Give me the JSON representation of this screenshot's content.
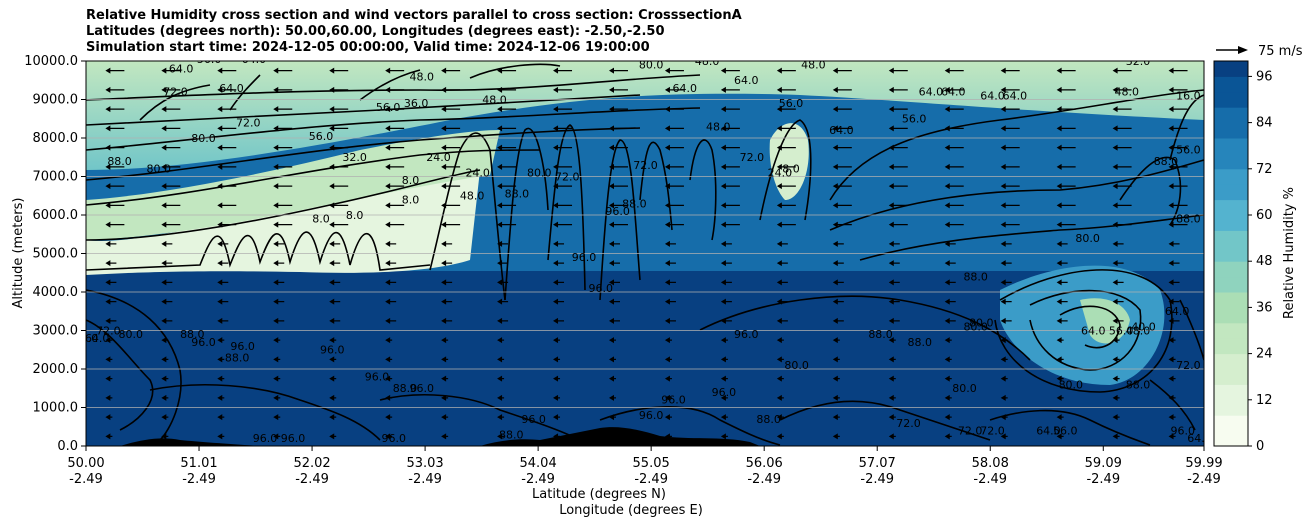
{
  "titles": {
    "line1": "Relative Humidity cross section and wind vectors parallel to cross section: CrosssectionA",
    "line2": "Latitudes (degrees north): 50.00,60.00, Longitudes (degrees east): -2.50,-2.50",
    "line3": "Simulation start time: 2024-12-05 00:00:00, Valid time: 2024-12-06 19:00:00"
  },
  "chart_data": {
    "type": "heatmap",
    "title": "Relative Humidity cross section and wind vectors parallel to cross section: CrosssectionA",
    "ylabel": "Altitude (meters)",
    "xlabel_lat": "Latitude (degrees N)",
    "xlabel_lon": "Longitude (degrees E)",
    "ylim": [
      0,
      10000
    ],
    "xlim": [
      50.0,
      59.99
    ],
    "y_ticks": [
      "0.0",
      "1000.0",
      "2000.0",
      "3000.0",
      "4000.0",
      "5000.0",
      "6000.0",
      "7000.0",
      "8000.0",
      "9000.0",
      "10000.0"
    ],
    "x_ticks_lat": [
      "50.00",
      "51.01",
      "52.02",
      "53.03",
      "54.04",
      "55.05",
      "56.06",
      "57.07",
      "58.08",
      "59.09",
      "59.99"
    ],
    "x_ticks_lon": [
      "-2.49",
      "-2.49",
      "-2.49",
      "-2.49",
      "-2.49",
      "-2.49",
      "-2.49",
      "-2.49",
      "-2.49",
      "-2.49",
      "-2.49"
    ],
    "grid": true,
    "colorbar": {
      "label": "Relative Humidity %",
      "ticks": [
        "0",
        "12",
        "24",
        "36",
        "48",
        "60",
        "72",
        "84",
        "96"
      ],
      "range": [
        0,
        100
      ],
      "colors": [
        "#f7fcf0",
        "#e5f5df",
        "#d5eece",
        "#c2e7c0",
        "#abdeb5",
        "#8fd3be",
        "#72c6c8",
        "#54b3cf",
        "#3b9cc8",
        "#2685bb",
        "#166daa",
        "#0a5596",
        "#084081"
      ]
    },
    "quiver_key": "75 m/s",
    "contour_labels": [
      {
        "t": "64.0",
        "x": 50.85,
        "y": 9700
      },
      {
        "t": "56.0",
        "x": 51.1,
        "y": 9950
      },
      {
        "t": "64.0",
        "x": 51.5,
        "y": 9950
      },
      {
        "t": "72.0",
        "x": 50.8,
        "y": 9100
      },
      {
        "t": "64.0",
        "x": 51.3,
        "y": 9200
      },
      {
        "t": "72.0",
        "x": 51.45,
        "y": 8300
      },
      {
        "t": "80.0",
        "x": 51.05,
        "y": 7900
      },
      {
        "t": "88.0",
        "x": 50.3,
        "y": 7300
      },
      {
        "t": "80.0",
        "x": 50.65,
        "y": 7100
      },
      {
        "t": "56.0",
        "x": 52.1,
        "y": 7950
      },
      {
        "t": "32.0",
        "x": 52.4,
        "y": 7400
      },
      {
        "t": "24.0",
        "x": 53.15,
        "y": 7400
      },
      {
        "t": "8.0",
        "x": 52.9,
        "y": 6800
      },
      {
        "t": "8.0",
        "x": 52.9,
        "y": 6300
      },
      {
        "t": "8.0",
        "x": 52.4,
        "y": 5900
      },
      {
        "t": "8.0",
        "x": 52.1,
        "y": 5800
      },
      {
        "t": "56.0",
        "x": 52.7,
        "y": 8700
      },
      {
        "t": "36.0",
        "x": 52.95,
        "y": 8800
      },
      {
        "t": "48.0",
        "x": 53.0,
        "y": 9500
      },
      {
        "t": "48.0",
        "x": 53.65,
        "y": 8900
      },
      {
        "t": "24.0",
        "x": 53.5,
        "y": 7000
      },
      {
        "t": "48.0",
        "x": 53.45,
        "y": 6400
      },
      {
        "t": "88.0",
        "x": 53.85,
        "y": 6450
      },
      {
        "t": "80.0",
        "x": 54.05,
        "y": 7000
      },
      {
        "t": "72.0",
        "x": 54.3,
        "y": 6900
      },
      {
        "t": "96.0",
        "x": 54.75,
        "y": 6000
      },
      {
        "t": "72.0",
        "x": 55.0,
        "y": 7200
      },
      {
        "t": "80.0",
        "x": 55.05,
        "y": 9800
      },
      {
        "t": "48.0",
        "x": 55.55,
        "y": 9900
      },
      {
        "t": "64.0",
        "x": 55.35,
        "y": 9200
      },
      {
        "t": "48.0",
        "x": 55.65,
        "y": 8200
      },
      {
        "t": "64.0",
        "x": 55.9,
        "y": 9400
      },
      {
        "t": "56.0",
        "x": 56.3,
        "y": 8800
      },
      {
        "t": "48.0",
        "x": 56.5,
        "y": 9800
      },
      {
        "t": "72.0",
        "x": 55.95,
        "y": 7400
      },
      {
        "t": "24.0",
        "x": 56.2,
        "y": 7000
      },
      {
        "t": "8.0",
        "x": 56.3,
        "y": 7100
      },
      {
        "t": "64.0",
        "x": 56.75,
        "y": 8100
      },
      {
        "t": "64.0",
        "x": 57.55,
        "y": 9100
      },
      {
        "t": "64.0",
        "x": 57.75,
        "y": 9100
      },
      {
        "t": "64.0",
        "x": 58.1,
        "y": 9000
      },
      {
        "t": "64.0",
        "x": 58.3,
        "y": 9000
      },
      {
        "t": "56.0",
        "x": 57.4,
        "y": 8400
      },
      {
        "t": "32.0",
        "x": 59.4,
        "y": 9900
      },
      {
        "t": "48.0",
        "x": 59.3,
        "y": 9100
      },
      {
        "t": "16.0",
        "x": 59.85,
        "y": 9000
      },
      {
        "t": "88.0",
        "x": 59.65,
        "y": 7300
      },
      {
        "t": "56.0",
        "x": 59.85,
        "y": 7600
      },
      {
        "t": "80.0",
        "x": 58.95,
        "y": 5300
      },
      {
        "t": "88.0",
        "x": 57.95,
        "y": 4300
      },
      {
        "t": "80.0",
        "x": 58.0,
        "y": 3100
      },
      {
        "t": "64.0",
        "x": 59.0,
        "y": 2900
      },
      {
        "t": "56.0",
        "x": 59.25,
        "y": 2900
      },
      {
        "t": "48.0",
        "x": 59.4,
        "y": 2900
      },
      {
        "t": "40.0",
        "x": 59.45,
        "y": 3000
      },
      {
        "t": "64.0",
        "x": 59.75,
        "y": 3400
      },
      {
        "t": "72.0",
        "x": 59.85,
        "y": 2000
      },
      {
        "t": "88.0",
        "x": 59.4,
        "y": 1500
      },
      {
        "t": "80.0",
        "x": 58.8,
        "y": 1500
      },
      {
        "t": "80.0",
        "x": 57.85,
        "y": 1400
      },
      {
        "t": "88.0",
        "x": 57.1,
        "y": 2800
      },
      {
        "t": "88.0",
        "x": 57.45,
        "y": 2600
      },
      {
        "t": "80.0",
        "x": 56.35,
        "y": 2000
      },
      {
        "t": "96.0",
        "x": 55.9,
        "y": 2800
      },
      {
        "t": "96.0",
        "x": 55.7,
        "y": 1300
      },
      {
        "t": "88.0",
        "x": 56.1,
        "y": 600
      },
      {
        "t": "96.0",
        "x": 55.25,
        "y": 1100
      },
      {
        "t": "96.0",
        "x": 55.05,
        "y": 700
      },
      {
        "t": "96.0",
        "x": 54.0,
        "y": 600
      },
      {
        "t": "88.0",
        "x": 53.8,
        "y": 200
      },
      {
        "t": "96.0",
        "x": 53.0,
        "y": 1400
      },
      {
        "t": "88.0",
        "x": 52.85,
        "y": 1400
      },
      {
        "t": "96.0",
        "x": 52.2,
        "y": 2400
      },
      {
        "t": "96.0",
        "x": 52.6,
        "y": 1700
      },
      {
        "t": "96.0",
        "x": 51.4,
        "y": 2500
      },
      {
        "t": "88.0",
        "x": 51.35,
        "y": 2200
      },
      {
        "t": "96.0",
        "x": 51.05,
        "y": 2600
      },
      {
        "t": "88.0",
        "x": 50.95,
        "y": 2800
      },
      {
        "t": "80.0",
        "x": 50.4,
        "y": 2800
      },
      {
        "t": "72.0",
        "x": 50.2,
        "y": 2900
      },
      {
        "t": "64.0",
        "x": 50.1,
        "y": 2700
      },
      {
        "t": "56.0",
        "x": 50.0,
        "y": 2700
      },
      {
        "t": "96.0",
        "x": 51.6,
        "y": 100
      },
      {
        "t": "96.0",
        "x": 51.85,
        "y": 100
      },
      {
        "t": "96.0",
        "x": 52.75,
        "y": 100
      },
      {
        "t": "72.0",
        "x": 57.35,
        "y": 500
      },
      {
        "t": "72.0",
        "x": 57.9,
        "y": 300
      },
      {
        "t": "72.0",
        "x": 58.1,
        "y": 300
      },
      {
        "t": "64.0",
        "x": 58.6,
        "y": 300
      },
      {
        "t": "56.0",
        "x": 58.75,
        "y": 300
      },
      {
        "t": "96.0",
        "x": 59.8,
        "y": 300
      },
      {
        "t": "64.0",
        "x": 59.95,
        "y": 100
      },
      {
        "t": "96.0",
        "x": 54.45,
        "y": 4800
      },
      {
        "t": "88.0",
        "x": 54.9,
        "y": 6200
      },
      {
        "t": "96.0",
        "x": 54.6,
        "y": 4000
      },
      {
        "t": "80.0",
        "x": 57.95,
        "y": 3000
      },
      {
        "t": "88.0",
        "x": 59.85,
        "y": 5800
      }
    ]
  }
}
